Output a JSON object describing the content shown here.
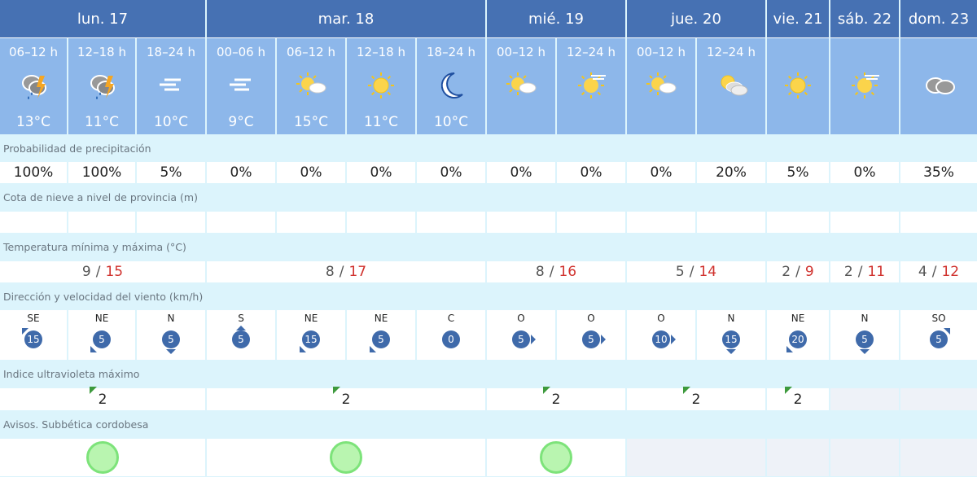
{
  "days": [
    {
      "label": "lun. 17",
      "span": 3
    },
    {
      "label": "mar. 18",
      "span": 4
    },
    {
      "label": "mié. 19",
      "span": 2
    },
    {
      "label": "jue. 20",
      "span": 2
    },
    {
      "label": "vie. 21",
      "span": 1
    },
    {
      "label": "sáb. 22",
      "span": 1
    },
    {
      "label": "dom. 23",
      "span": 1
    }
  ],
  "periods": [
    {
      "label": "06–12 h",
      "icon": "storm-rain-icon",
      "temp": "13°C"
    },
    {
      "label": "12–18 h",
      "icon": "storm-rain-icon",
      "temp": "11°C"
    },
    {
      "label": "18–24 h",
      "icon": "fog-icon",
      "temp": "10°C"
    },
    {
      "label": "00–06 h",
      "icon": "fog-icon",
      "temp": "9°C"
    },
    {
      "label": "06–12 h",
      "icon": "sun-cloud-icon",
      "temp": "15°C"
    },
    {
      "label": "12–18 h",
      "icon": "sun-icon",
      "temp": "11°C"
    },
    {
      "label": "18–24 h",
      "icon": "moon-icon",
      "temp": "10°C"
    },
    {
      "label": "00–12 h",
      "icon": "sun-cloud-icon"
    },
    {
      "label": "12–24 h",
      "icon": "sun-haze-icon"
    },
    {
      "label": "00–12 h",
      "icon": "sun-cloud-icon"
    },
    {
      "label": "12–24 h",
      "icon": "sun-clouds-icon"
    },
    {
      "icon": "sun-icon"
    },
    {
      "icon": "sun-haze-icon"
    },
    {
      "icon": "cloud-icon"
    }
  ],
  "labels": {
    "precip": "Probabilidad de precipitación",
    "snow": "Cota de nieve a nivel de provincia (m)",
    "temp": "Temperatura mínima y máxima (°C)",
    "wind": "Dirección y velocidad del viento (km/h)",
    "uv": "Indice ultravioleta máximo",
    "avisos": "Avisos. Subbética cordobesa"
  },
  "precip": [
    "100%",
    "100%",
    "5%",
    "0%",
    "0%",
    "0%",
    "0%",
    "0%",
    "0%",
    "0%",
    "20%",
    "5%",
    "0%",
    "35%"
  ],
  "minmax": [
    {
      "min": "9",
      "max": "15"
    },
    {
      "min": "8",
      "max": "17"
    },
    {
      "min": "8",
      "max": "16"
    },
    {
      "min": "5",
      "max": "14"
    },
    {
      "min": "2",
      "max": "9"
    },
    {
      "min": "2",
      "max": "11"
    },
    {
      "min": "4",
      "max": "12"
    }
  ],
  "sep": "/",
  "wind": [
    {
      "dir": "SE",
      "speed": "15"
    },
    {
      "dir": "NE",
      "speed": "5"
    },
    {
      "dir": "N",
      "speed": "5"
    },
    {
      "dir": "S",
      "speed": "5"
    },
    {
      "dir": "NE",
      "speed": "15"
    },
    {
      "dir": "NE",
      "speed": "5"
    },
    {
      "dir": "C",
      "speed": "0"
    },
    {
      "dir": "O",
      "speed": "5"
    },
    {
      "dir": "O",
      "speed": "5"
    },
    {
      "dir": "O",
      "speed": "10"
    },
    {
      "dir": "N",
      "speed": "15"
    },
    {
      "dir": "NE",
      "speed": "20"
    },
    {
      "dir": "N",
      "speed": "5"
    },
    {
      "dir": "SO",
      "speed": "5"
    }
  ],
  "uv": [
    "2",
    "2",
    "2",
    "2",
    "2",
    "",
    ""
  ],
  "avisos": [
    "green",
    "green",
    "green",
    "",
    "",
    "",
    ""
  ],
  "colors": {
    "header": "#4671b3",
    "period": "#8db7ea",
    "max": "#d0312d",
    "wind_badge": "#3f6aaa",
    "aviso_green": "#7de37a",
    "uv_low": "#3d9a3d"
  }
}
